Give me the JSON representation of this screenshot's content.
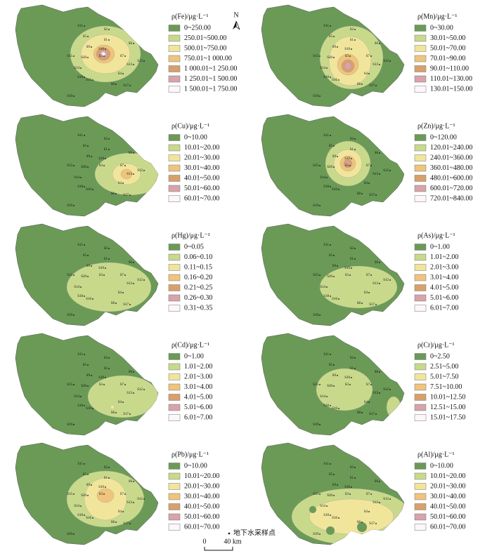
{
  "panels": [
    {
      "title": "ρ(Fe)/μg·L⁻¹",
      "classes": [
        "0~250.00",
        "250.01~500.00",
        "500.01~750.00",
        "750.01~1 000.00",
        "1 000.01~1 250.00",
        "1 250.01~1 500.00",
        "1 500.01~1 750.00"
      ]
    },
    {
      "title": "ρ(Mn)/μg·L⁻¹",
      "classes": [
        "0~30.00",
        "30.01~50.00",
        "50.01~70.00",
        "70.01~90.00",
        "90.01~110.00",
        "110.01~130.00",
        "130.01~150.00"
      ]
    },
    {
      "title": "ρ(Cu)/μg·L⁻¹",
      "classes": [
        "0~10.00",
        "10.01~20.00",
        "20.01~30.00",
        "30.01~40.00",
        "40.01~50.00",
        "50.01~60.00",
        "60.01~70.00"
      ]
    },
    {
      "title": "ρ(Zn)/μg·L⁻¹",
      "classes": [
        "0~120.00",
        "120.01~240.00",
        "240.01~360.00",
        "360.01~480.00",
        "480.01~600.00",
        "600.01~720.00",
        "720.01~840.00"
      ]
    },
    {
      "title": "ρ(Hg)/μg·L⁻¹",
      "classes": [
        "0~0.05",
        "0.06~0.10",
        "0.11~0.15",
        "0.16~0.20",
        "0.21~0.25",
        "0.26~0.30",
        "0.31~0.35"
      ]
    },
    {
      "title": "ρ(As)/μg·L⁻¹",
      "classes": [
        "0~1.00",
        "1.01~2.00",
        "2.01~3.00",
        "3.01~4.00",
        "4.01~5.00",
        "5.01~6.00",
        "6.01~7.00"
      ]
    },
    {
      "title": "ρ(Cd)/μg·L⁻¹",
      "classes": [
        "0~1.00",
        "1.01~2.00",
        "2.01~3.00",
        "3.01~4.00",
        "4.01~5.00",
        "5.01~6.00",
        "6.01~7.00"
      ]
    },
    {
      "title": "ρ(Cr)/μg·L⁻¹",
      "classes": [
        "0~2.50",
        "2.51~5.00",
        "5.01~7.50",
        "7.51~10.00",
        "10.01~12.50",
        "12.51~15.00",
        "15.01~17.50"
      ]
    },
    {
      "title": "ρ(Pb)/μg·L⁻¹",
      "classes": [
        "0~10.00",
        "10.01~20.00",
        "20.01~30.00",
        "30.01~40.00",
        "40.01~50.00",
        "50.01~60.00",
        "60.01~70.00"
      ]
    },
    {
      "title": "ρ(Al)/μg·L⁻¹",
      "classes": [
        "0~10.00",
        "10.01~20.00",
        "20.01~30.00",
        "30.01~40.00",
        "40.01~50.00",
        "50.01~60.00",
        "60.01~70.00"
      ]
    }
  ],
  "stations": [
    "S1",
    "S2",
    "S3",
    "S4",
    "S5",
    "S6",
    "S7",
    "S8",
    "S9",
    "S10",
    "S11",
    "S12",
    "S13",
    "S14",
    "S15",
    "S16",
    "S17",
    "S18",
    "S19",
    "S20"
  ],
  "north": "N",
  "point_legend": "地下水采样点",
  "scale": {
    "start": "0",
    "end": "40 km"
  }
}
